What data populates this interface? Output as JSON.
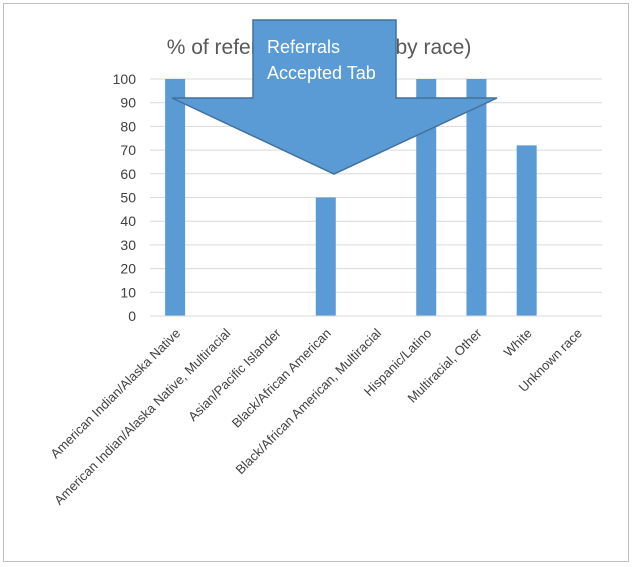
{
  "chart_data": {
    "type": "bar",
    "title": "% of referrals accepted (by race)",
    "categories": [
      "American Indian/Alaska Native",
      "American Indian/Alaska Native, Multiracial",
      "Asian/Pacific Islander",
      "Black/African American",
      "Black/African American, Multiracial",
      "Hispanic/Latino",
      "Multiracial, Other",
      "White",
      "Unknown race"
    ],
    "values": [
      100,
      0,
      0,
      50,
      0,
      100,
      100,
      72,
      0
    ],
    "ylim": [
      0,
      100
    ],
    "yticks": [
      0,
      10,
      20,
      30,
      40,
      50,
      60,
      70,
      80,
      90,
      100
    ],
    "grid": true,
    "bar_color": "#5b9bd5"
  },
  "callout": {
    "line1": "Referrals",
    "line2": "Accepted Tab",
    "fill_color": "#5b9bd5",
    "border_color": "#41719c"
  }
}
